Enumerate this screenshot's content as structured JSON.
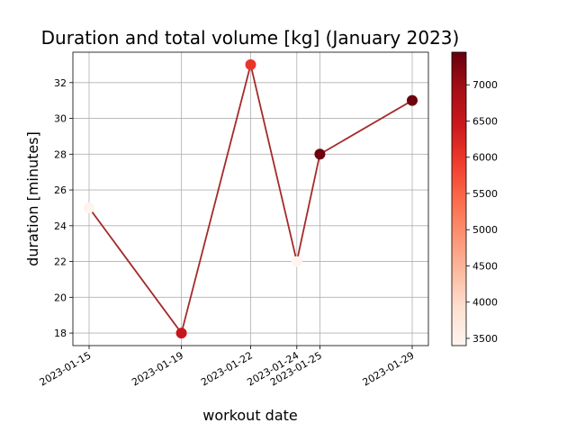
{
  "chart_data": {
    "type": "scatter",
    "title": "Duration and total volume [kg] (January 2023)",
    "xlabel": "workout date",
    "ylabel": "duration [minutes]",
    "x_ticks": [
      "2023-01-15",
      "2023-01-19",
      "2023-01-22",
      "2023-01-24",
      "2023-01-25",
      "2023-01-29"
    ],
    "y_ticks": [
      18,
      20,
      22,
      24,
      26,
      28,
      30,
      32
    ],
    "ylim": [
      17.3,
      33.7
    ],
    "xlim": [
      "2023-01-15",
      "2023-01-29"
    ],
    "grid": true,
    "line_color": "#a52a2a",
    "colormap": "Reds",
    "colorbar": {
      "range": [
        3400,
        7450
      ],
      "ticks": [
        3500,
        4000,
        4500,
        5000,
        5500,
        6000,
        6500,
        7000
      ]
    },
    "points": [
      {
        "x": "2023-01-15",
        "y": 25,
        "volume": 3450
      },
      {
        "x": "2023-01-19",
        "y": 18,
        "volume": 6500
      },
      {
        "x": "2023-01-22",
        "y": 33,
        "volume": 6000
      },
      {
        "x": "2023-01-24",
        "y": 22,
        "volume": 3400
      },
      {
        "x": "2023-01-25",
        "y": 28,
        "volume": 7400
      },
      {
        "x": "2023-01-29",
        "y": 31,
        "volume": 7400
      }
    ]
  }
}
